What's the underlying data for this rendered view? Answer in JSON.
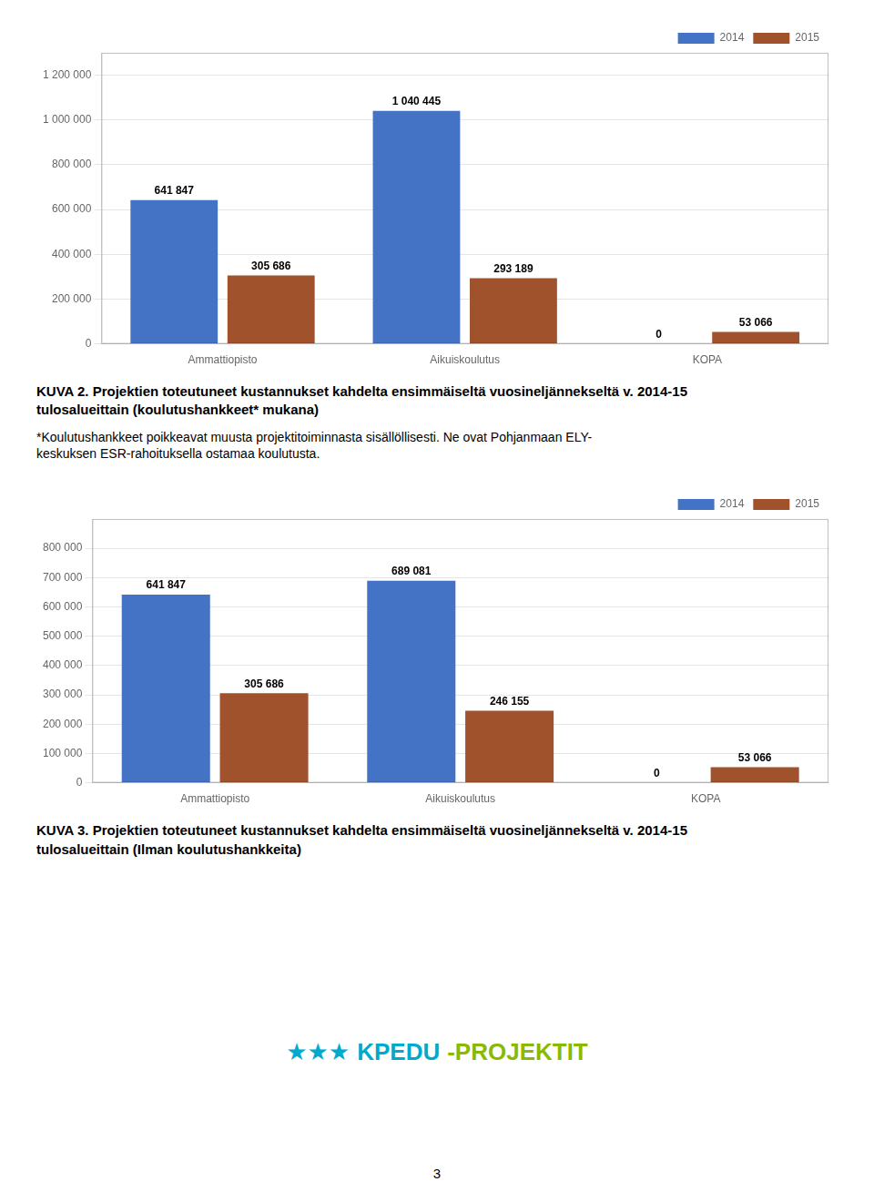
{
  "chart_data": [
    {
      "type": "bar",
      "title": [
        "KUVA 2. Projektien toteutuneet kustannukset kahdelta ensimmäiseltä vuosineljännekseltä v. 2014-15",
        "tulosalueittain (koulutushankkeet* mukana)"
      ],
      "subtitle": [
        "*Koulutushankkeet poikkeavat muusta projektitoiminnasta sisällöllisesti. Ne ovat Pohjanmaan ELY-",
        "keskuksen ESR-rahoituksella ostamaa koulutusta."
      ],
      "categories": [
        "Ammattiopisto",
        "Aikuiskoulutus",
        "KOPA"
      ],
      "series": [
        {
          "name": "2014",
          "color": "#4472C4",
          "values": [
            641847,
            1040445,
            0
          ],
          "value_labels": [
            "641 847",
            "1 040 445",
            "0"
          ]
        },
        {
          "name": "2015",
          "color": "#A0522D",
          "values": [
            305686,
            293189,
            53066
          ],
          "value_labels": [
            "305 686",
            "293 189",
            "53 066"
          ]
        }
      ],
      "ylim": [
        0,
        1300000
      ],
      "yticks": [
        0,
        {
          "value": 200000,
          "label": "200 000"
        },
        {
          "value": 400000,
          "label": "400 000"
        },
        {
          "value": 600000,
          "label": "600 000"
        },
        {
          "value": 800000,
          "label": "800 000"
        },
        {
          "value": 1000000,
          "label": "1 000 000"
        },
        {
          "value": 1200000,
          "label": "1 200 000"
        }
      ],
      "grid": true,
      "legend": "upper right",
      "data_labels": true
    },
    {
      "type": "bar",
      "title": [
        "KUVA 3. Projektien toteutuneet kustannukset kahdelta ensimmäiseltä vuosineljännekseltä v. 2014-15",
        "tulosalueittain (Ilman koulutushankkeita)"
      ],
      "categories": [
        "Ammattiopisto",
        "Aikuiskoulutus",
        "KOPA"
      ],
      "series": [
        {
          "name": "2014",
          "color": "#4472C4",
          "values": [
            641847,
            689081,
            0
          ],
          "value_labels": [
            "641 847",
            "689 081",
            "0"
          ]
        },
        {
          "name": "2015",
          "color": "#A0522D",
          "values": [
            305686,
            246155,
            53066
          ],
          "value_labels": [
            "305 686",
            "246 155",
            "53 066"
          ]
        }
      ],
      "ylim": [
        0,
        900000
      ],
      "yticks": [
        0,
        {
          "value": 100000,
          "label": "100 000"
        },
        {
          "value": 200000,
          "label": "200 000"
        },
        {
          "value": 300000,
          "label": "300 000"
        },
        {
          "value": 400000,
          "label": "400 000"
        },
        {
          "value": 500000,
          "label": "500 000"
        },
        {
          "value": 600000,
          "label": "600 000"
        },
        {
          "value": 700000,
          "label": "700 000"
        },
        {
          "value": 800000,
          "label": "800 000"
        }
      ],
      "grid": true,
      "legend": "upper right",
      "data_labels": true
    }
  ],
  "annotations": [
    {
      "text": "★★★",
      "color": "#00AACC"
    },
    {
      "text": "KPEDU",
      "color": "#00AACC"
    },
    {
      "text": "-PROJEKTIT",
      "color": "#88BB00"
    },
    {
      "text": "3"
    }
  ]
}
